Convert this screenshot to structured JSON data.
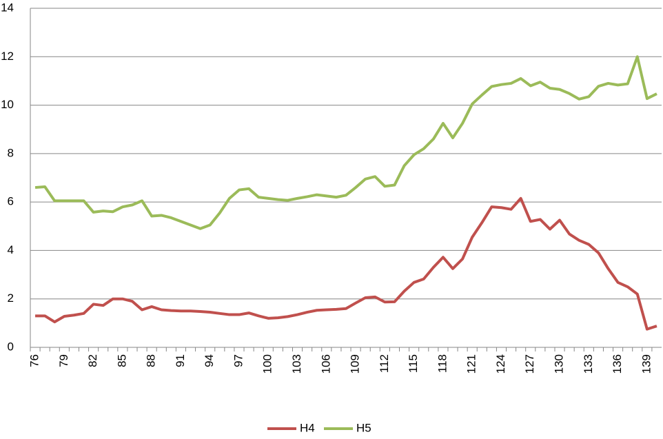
{
  "chart_data": {
    "type": "line",
    "categories": [
      "76",
      null,
      null,
      "79",
      null,
      null,
      "82",
      null,
      null,
      "85",
      null,
      null,
      "88",
      null,
      null,
      "91",
      null,
      null,
      "94",
      null,
      null,
      "97",
      null,
      null,
      "100",
      null,
      null,
      "103",
      null,
      null,
      "106",
      null,
      null,
      "109",
      null,
      null,
      "112",
      null,
      null,
      "115",
      null,
      null,
      "118",
      null,
      null,
      "121",
      null,
      null,
      "124",
      null,
      null,
      "127",
      null,
      null,
      "130",
      null,
      null,
      "133",
      null,
      null,
      "136",
      null,
      null,
      "139",
      null
    ],
    "series": [
      {
        "name": "H4",
        "color": "#c0504d",
        "values": [
          1.3,
          1.3,
          1.05,
          1.28,
          1.33,
          1.4,
          1.78,
          1.73,
          2.0,
          2.0,
          1.9,
          1.55,
          1.68,
          1.55,
          1.52,
          1.5,
          1.5,
          1.48,
          1.45,
          1.4,
          1.35,
          1.35,
          1.42,
          1.3,
          1.2,
          1.22,
          1.27,
          1.35,
          1.45,
          1.53,
          1.55,
          1.57,
          1.6,
          1.83,
          2.05,
          2.08,
          1.87,
          1.88,
          2.32,
          2.68,
          2.82,
          3.3,
          3.72,
          3.25,
          3.65,
          4.55,
          5.15,
          5.8,
          5.77,
          5.7,
          6.15,
          5.2,
          5.28,
          4.88,
          5.25,
          4.68,
          4.42,
          4.25,
          3.9,
          3.25,
          2.68,
          2.5,
          2.2,
          0.75,
          0.88
        ]
      },
      {
        "name": "H5",
        "color": "#9bbb59",
        "values": [
          6.6,
          6.63,
          6.05,
          6.05,
          6.05,
          6.05,
          5.58,
          5.63,
          5.6,
          5.8,
          5.88,
          6.05,
          5.42,
          5.45,
          5.35,
          5.2,
          5.05,
          4.9,
          5.05,
          5.55,
          6.15,
          6.5,
          6.55,
          6.2,
          6.15,
          6.1,
          6.07,
          6.15,
          6.22,
          6.3,
          6.25,
          6.2,
          6.28,
          6.6,
          6.95,
          7.05,
          6.65,
          6.7,
          7.5,
          7.95,
          8.2,
          8.6,
          9.25,
          8.65,
          9.25,
          10.05,
          10.42,
          10.77,
          10.85,
          10.9,
          11.1,
          10.8,
          10.95,
          10.7,
          10.65,
          10.48,
          10.25,
          10.35,
          10.78,
          10.9,
          10.83,
          10.88,
          12.0,
          10.27,
          10.47
        ]
      }
    ],
    "ylim": [
      0,
      14
    ],
    "yticks": [
      0,
      2,
      4,
      6,
      8,
      10,
      12,
      14
    ],
    "grid": true,
    "legend": "bottom"
  }
}
